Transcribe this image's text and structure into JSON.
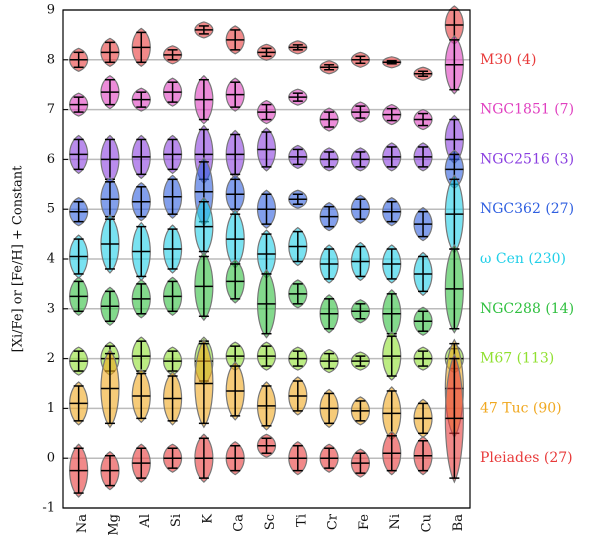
{
  "chart_data": {
    "type": "violin",
    "y_label": "[Xi/Fe] or [Fe/H] + Constant",
    "categories": [
      "Na",
      "Mg",
      "Al",
      "Si",
      "K",
      "Ca",
      "Sc",
      "Ti",
      "Cr",
      "Fe",
      "Ni",
      "Cu",
      "Ba"
    ],
    "ylim": [
      -1,
      9
    ],
    "yticks": [
      -1,
      0,
      1,
      2,
      3,
      4,
      5,
      6,
      7,
      8,
      9
    ],
    "grid": true,
    "series": [
      {
        "name": "M30 (4)",
        "color": "#e83a3a",
        "values": [
          8.0,
          8.15,
          8.25,
          8.1,
          8.6,
          8.4,
          8.15,
          8.25,
          7.85,
          8.0,
          7.95,
          7.72,
          8.7
        ],
        "errors": [
          0.15,
          0.2,
          0.3,
          0.1,
          0.08,
          0.2,
          0.08,
          0.05,
          0.05,
          0.07,
          0.03,
          0.05,
          0.3
        ]
      },
      {
        "name": "NGC1851 (7)",
        "color": "#e040c0",
        "values": [
          7.1,
          7.35,
          7.2,
          7.35,
          7.2,
          7.3,
          6.95,
          7.25,
          6.8,
          6.95,
          6.9,
          6.8,
          7.9
        ],
        "errors": [
          0.15,
          0.25,
          0.15,
          0.2,
          0.4,
          0.25,
          0.15,
          0.08,
          0.15,
          0.12,
          0.12,
          0.12,
          0.5
        ]
      },
      {
        "name": "NGC2516 (3)",
        "color": "#8a3fe0",
        "values": [
          6.1,
          6.0,
          6.05,
          6.1,
          6.1,
          6.1,
          6.2,
          6.05,
          6.0,
          6.0,
          6.05,
          6.05,
          6.4
        ],
        "errors": [
          0.3,
          0.4,
          0.35,
          0.3,
          0.5,
          0.4,
          0.35,
          0.15,
          0.15,
          0.15,
          0.2,
          0.2,
          0.4
        ]
      },
      {
        "name": "NGC362 (27)",
        "color": "#2f5fe0",
        "values": [
          4.95,
          5.2,
          5.15,
          5.25,
          5.35,
          5.3,
          5.0,
          5.2,
          4.85,
          5.0,
          4.95,
          4.7,
          5.8
        ],
        "errors": [
          0.2,
          0.35,
          0.3,
          0.35,
          0.6,
          0.3,
          0.3,
          0.1,
          0.2,
          0.2,
          0.2,
          0.25,
          0.3
        ]
      },
      {
        "name": "ω Cen (230)",
        "color": "#20cfe8",
        "values": [
          4.05,
          4.3,
          4.15,
          4.2,
          4.65,
          4.4,
          4.1,
          4.25,
          3.9,
          3.95,
          3.9,
          3.7,
          4.9
        ],
        "errors": [
          0.35,
          0.5,
          0.5,
          0.4,
          0.5,
          0.5,
          0.4,
          0.3,
          0.3,
          0.3,
          0.3,
          0.35,
          0.7
        ]
      },
      {
        "name": "NGC288 (14)",
        "color": "#30c040",
        "values": [
          3.25,
          3.05,
          3.2,
          3.25,
          3.45,
          3.55,
          3.1,
          3.3,
          2.9,
          2.95,
          2.9,
          2.75,
          3.4
        ],
        "errors": [
          0.3,
          0.3,
          0.3,
          0.3,
          0.6,
          0.35,
          0.6,
          0.2,
          0.3,
          0.15,
          0.4,
          0.2,
          0.8
        ]
      },
      {
        "name": "M67 (113)",
        "color": "#90e030",
        "values": [
          1.95,
          2.0,
          2.05,
          1.95,
          1.95,
          2.05,
          2.05,
          2.0,
          1.95,
          1.95,
          2.05,
          2.0,
          2.0
        ],
        "errors": [
          0.2,
          0.25,
          0.3,
          0.2,
          0.4,
          0.2,
          0.2,
          0.15,
          0.15,
          0.1,
          0.4,
          0.15,
          0.2
        ]
      },
      {
        "name": "47 Tuc (90)",
        "color": "#f0a820",
        "values": [
          1.1,
          1.4,
          1.25,
          1.2,
          1.5,
          1.35,
          1.05,
          1.25,
          1.0,
          0.95,
          0.9,
          0.8,
          1.4
        ],
        "errors": [
          0.35,
          0.7,
          0.45,
          0.45,
          0.8,
          0.5,
          0.4,
          0.3,
          0.3,
          0.2,
          0.45,
          0.3,
          0.9
        ]
      },
      {
        "name": "Pleiades (27)",
        "color": "#e83a3a",
        "values": [
          -0.25,
          -0.25,
          -0.1,
          0.0,
          0.0,
          0.0,
          0.25,
          0.0,
          0.0,
          -0.1,
          0.1,
          0.05,
          0.8
        ],
        "errors": [
          0.45,
          0.3,
          0.3,
          0.2,
          0.4,
          0.25,
          0.15,
          0.25,
          0.2,
          0.2,
          0.35,
          0.3,
          1.2
        ]
      }
    ]
  }
}
